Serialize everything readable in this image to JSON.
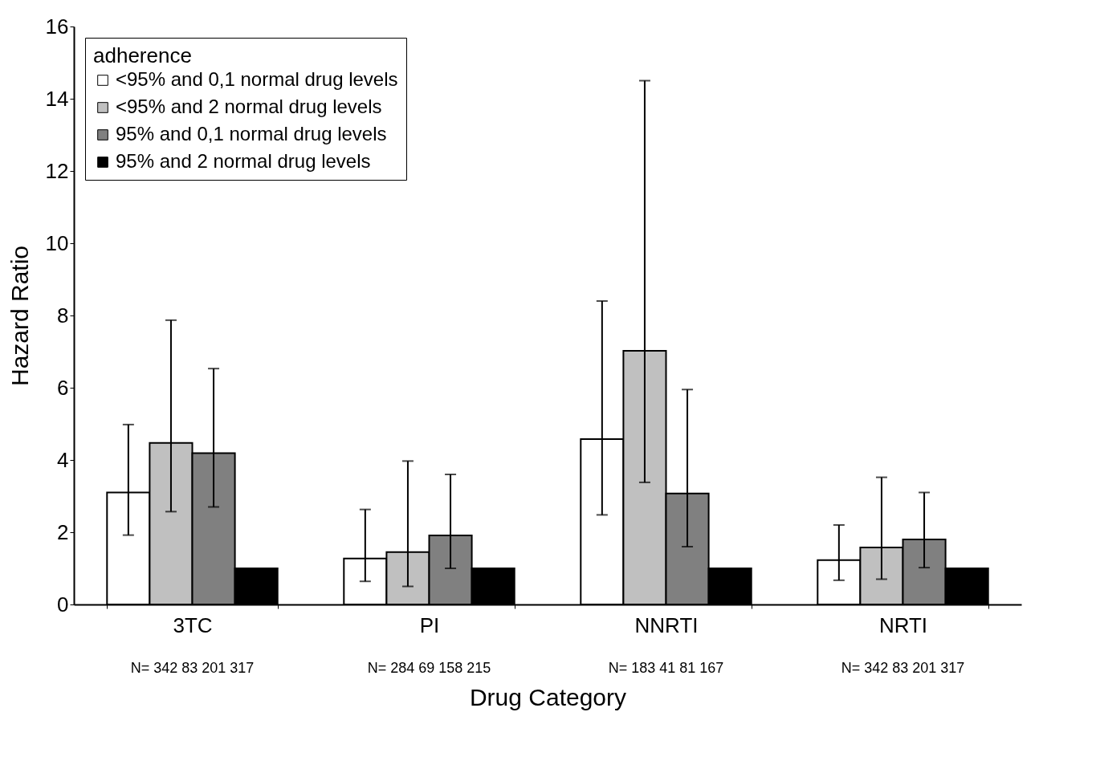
{
  "chart_data": {
    "type": "bar",
    "xlabel": "Drug Category",
    "ylabel": "Hazard Ratio",
    "legend_title": "adherence",
    "categories": [
      "3TC",
      "PI",
      "NNRTI",
      "NRTI"
    ],
    "series": [
      {
        "name": "<95% and 0,1 normal drug levels",
        "color": "#ffffff",
        "values": [
          3.1,
          1.27,
          4.58,
          1.23
        ],
        "errors": [
          [
            1.92,
            4.98
          ],
          [
            0.64,
            2.63
          ],
          [
            2.48,
            8.4
          ],
          [
            0.67,
            2.2
          ]
        ]
      },
      {
        "name": "<95% and 2 normal drug levels",
        "color": "#c0c0c0",
        "values": [
          4.47,
          1.45,
          7.02,
          1.58
        ],
        "errors": [
          [
            2.57,
            7.87
          ],
          [
            0.5,
            3.97
          ],
          [
            3.38,
            14.5
          ],
          [
            0.7,
            3.52
          ]
        ]
      },
      {
        "name": "95% and 0,1 normal drug levels",
        "color": "#808080",
        "values": [
          4.19,
          1.91,
          3.07,
          1.8
        ],
        "errors": [
          [
            2.7,
            6.53
          ],
          [
            1.0,
            3.6
          ],
          [
            1.6,
            5.95
          ],
          [
            1.02,
            3.1
          ]
        ]
      },
      {
        "name": "95% and 2 normal drug levels",
        "color": "#000000",
        "values": [
          1,
          1,
          1,
          1
        ]
      }
    ],
    "ylim": [
      0,
      16
    ],
    "yticks": [
      0,
      2,
      4,
      6,
      8,
      10,
      12,
      14,
      16
    ],
    "grid": false,
    "legend": "top left",
    "annotations": [
      "N= 342  83  201 317",
      "N= 284  69  158  215",
      "N= 183   41  81  167",
      "N= 342  83  201 317"
    ]
  }
}
